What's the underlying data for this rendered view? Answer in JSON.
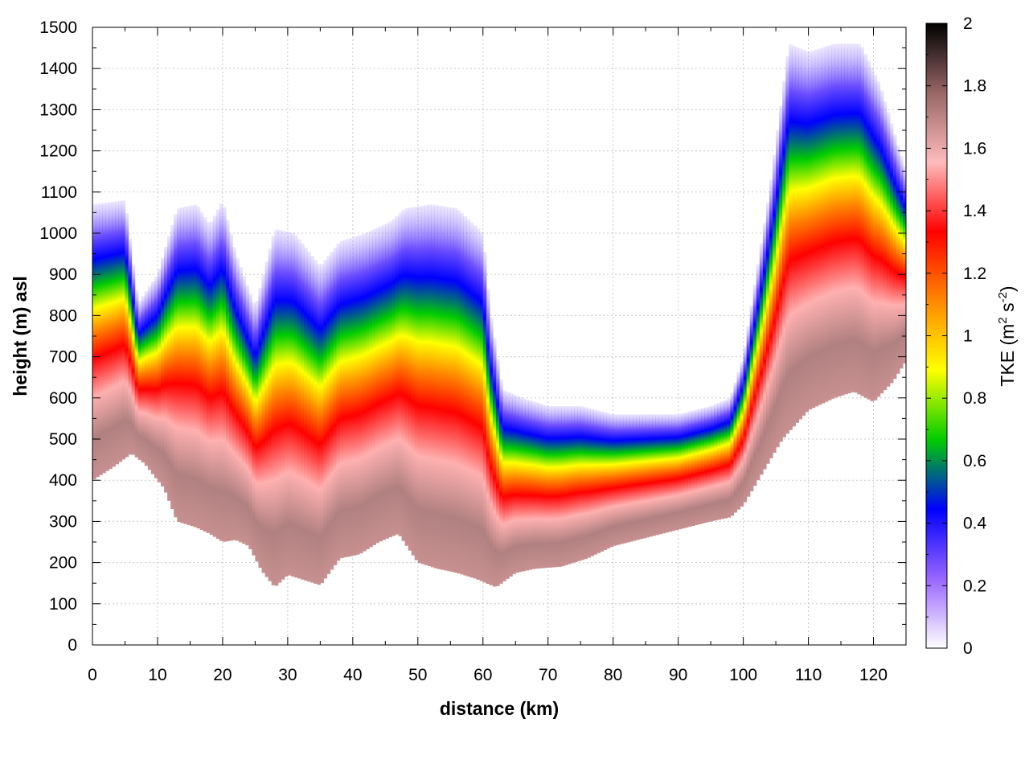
{
  "chart_data": {
    "type": "heatmap",
    "title": "",
    "xlabel": "distance (km)",
    "ylabel": "height (m) asl",
    "colorbar_label": "TKE (m",
    "colorbar_label_sup1": "2",
    "colorbar_label_mid": " s",
    "colorbar_label_sup2": "-2",
    "colorbar_label_end": ")",
    "xlim": [
      0,
      125
    ],
    "ylim": [
      0,
      1500
    ],
    "clim": [
      0,
      2
    ],
    "grid": true,
    "x_ticks": [
      "0",
      "10",
      "20",
      "30",
      "40",
      "50",
      "60",
      "70",
      "80",
      "90",
      "100",
      "110",
      "120"
    ],
    "y_ticks": [
      "0",
      "100",
      "200",
      "300",
      "400",
      "500",
      "600",
      "700",
      "800",
      "900",
      "1000",
      "1100",
      "1200",
      "1300",
      "1400",
      "1500"
    ],
    "colorbar_ticks": [
      "0",
      "0.2",
      "0.4",
      "0.6",
      "0.8",
      "1",
      "1.2",
      "1.4",
      "1.6",
      "1.8",
      "2"
    ],
    "colormap": [
      "#ffffff",
      "#9966ff",
      "#0000ff",
      "#00cc00",
      "#ffff00",
      "#ff8800",
      "#ff0000",
      "#ffbbbb",
      "#996666",
      "#000000"
    ],
    "terrain_height_profile": {
      "x": [
        0,
        3,
        6,
        8,
        11,
        13,
        16,
        18,
        20,
        22,
        24,
        26,
        28,
        30,
        32,
        35,
        38,
        41,
        44,
        47,
        50,
        53,
        56,
        59,
        62,
        65,
        68,
        72,
        76,
        80,
        85,
        90,
        95,
        98,
        100,
        103,
        106,
        110,
        114,
        117,
        120,
        123,
        125
      ],
      "y": [
        400,
        430,
        465,
        440,
        380,
        300,
        285,
        270,
        250,
        255,
        240,
        180,
        140,
        170,
        160,
        145,
        210,
        220,
        250,
        270,
        200,
        185,
        175,
        160,
        140,
        175,
        185,
        190,
        210,
        240,
        260,
        280,
        300,
        310,
        340,
        420,
        500,
        570,
        600,
        615,
        590,
        640,
        690
      ]
    },
    "boundary_layer_top": {
      "x": [
        0,
        5,
        7,
        10,
        13,
        16,
        18,
        20,
        22,
        25,
        28,
        31,
        35,
        38,
        42,
        46,
        48,
        52,
        56,
        60,
        61,
        63,
        66,
        70,
        75,
        80,
        85,
        90,
        95,
        98,
        100,
        104,
        107,
        110,
        114,
        118,
        121,
        124,
        125
      ],
      "y": [
        1070,
        1080,
        830,
        900,
        1060,
        1070,
        1020,
        1080,
        950,
        820,
        1010,
        1000,
        920,
        980,
        1000,
        1030,
        1060,
        1070,
        1060,
        1000,
        820,
        620,
        600,
        580,
        580,
        560,
        560,
        560,
        580,
        600,
        700,
        1100,
        1460,
        1440,
        1460,
        1460,
        1360,
        1200,
        1150
      ]
    }
  }
}
